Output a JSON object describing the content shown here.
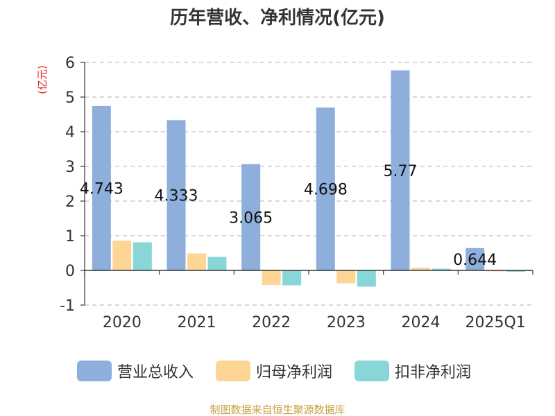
{
  "chart_data": {
    "type": "bar",
    "title": "历年营收、净利情况(亿元)",
    "unit_label": "(亿元)",
    "categories": [
      "2020",
      "2021",
      "2022",
      "2023",
      "2024",
      "2025Q1"
    ],
    "ylim": [
      -1,
      6
    ],
    "yticks": [
      "-1",
      "0",
      "1",
      "2",
      "3",
      "4",
      "5",
      "6"
    ],
    "grid": true,
    "legend_position": "bottom",
    "series": [
      {
        "name": "营业总收入",
        "color": "#8eaedb",
        "values": [
          4.743,
          4.333,
          3.065,
          4.698,
          5.77,
          0.644
        ]
      },
      {
        "name": "归母净利润",
        "color": "#fdd594",
        "values": [
          0.86,
          0.49,
          -0.42,
          -0.37,
          0.08,
          -0.03
        ]
      },
      {
        "name": "扣非净利润",
        "color": "#88d6d8",
        "values": [
          0.81,
          0.39,
          -0.43,
          -0.47,
          0.05,
          -0.04
        ]
      }
    ],
    "data_labels": [
      "4.743",
      "4.333",
      "3.065",
      "4.698",
      "5.77",
      "0.644"
    ]
  },
  "source": "制图数据来自恒生聚源数据库"
}
